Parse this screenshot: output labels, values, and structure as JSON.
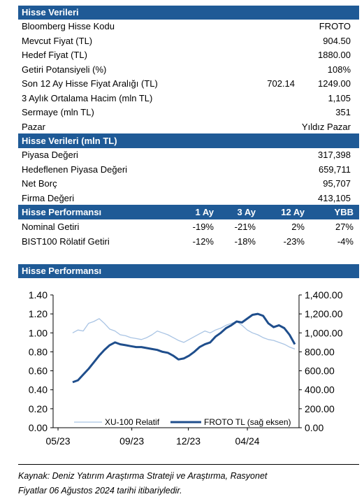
{
  "section1": {
    "title": "Hisse Verileri",
    "rows": [
      {
        "label": "Bloomberg Hisse Kodu",
        "value": "FROTO"
      },
      {
        "label": "Mevcut Fiyat (TL)",
        "value": "904.50"
      },
      {
        "label": "Hedef Fiyat (TL)",
        "value": "1880.00"
      },
      {
        "label": "Getiri Potansiyeli (%)",
        "value": "108%"
      },
      {
        "label": "Son 12 Ay Hisse Fiyat Aralığı (TL)",
        "value_low": "702.14",
        "value": "1249.00"
      },
      {
        "label": "3 Aylık Ortalama Hacim (mln TL)",
        "value": "1,105"
      },
      {
        "label": "Sermaye (mln TL)",
        "value": "351"
      },
      {
        "label": "Pazar",
        "value": "Yıldız Pazar"
      }
    ]
  },
  "section2": {
    "title": "Hisse Verileri (mln TL)",
    "rows": [
      {
        "label": "Piyasa Değeri",
        "value": "317,398"
      },
      {
        "label": "Hedeflenen Piyasa Değeri",
        "value": "659,711"
      },
      {
        "label": "Net Borç",
        "value": "95,707"
      },
      {
        "label": "Firma Değeri",
        "value": "413,105"
      }
    ]
  },
  "section3": {
    "title": "Hisse Performansı",
    "columns": [
      "1 Ay",
      "3 Ay",
      "12 Ay",
      "YBB"
    ],
    "rows": [
      {
        "label": "Nominal Getiri",
        "values": [
          "-19%",
          "-21%",
          "2%",
          "27%"
        ]
      },
      {
        "label": "BIST100 Rölatif Getiri",
        "values": [
          "-12%",
          "-18%",
          "-23%",
          "-4%"
        ]
      }
    ]
  },
  "section4": {
    "title": "Hisse Performansı"
  },
  "chart_data": {
    "type": "line",
    "x_tick_labels": [
      "05/23",
      "09/23",
      "12/23",
      "04/24"
    ],
    "left_axis": {
      "ticks": [
        "0.00",
        "0.20",
        "0.40",
        "0.60",
        "0.80",
        "1.00",
        "1.20",
        "1.40"
      ],
      "ylim": [
        0,
        1.4
      ]
    },
    "right_axis": {
      "ticks": [
        "0.00",
        "200.00",
        "400.00",
        "600.00",
        "800.00",
        "1,000.00",
        "1,200.00",
        "1,400.00"
      ],
      "ylim": [
        0,
        1400
      ]
    },
    "legend_placement": "bottom",
    "series": [
      {
        "name": "XU-100 Relatif",
        "axis": "left",
        "color": "#a9c4e4",
        "values": [
          1.0,
          1.03,
          1.02,
          1.1,
          1.12,
          1.15,
          1.1,
          1.04,
          1.02,
          0.98,
          0.97,
          0.95,
          0.94,
          0.93,
          0.95,
          0.98,
          1.02,
          1.0,
          0.98,
          0.95,
          0.92,
          0.9,
          0.93,
          0.96,
          0.99,
          1.02,
          1.0,
          1.03,
          1.05,
          1.08,
          1.1,
          1.12,
          1.08,
          1.03,
          1.0,
          0.98,
          0.95,
          0.93,
          0.92,
          0.9,
          0.88,
          0.85,
          0.83
        ]
      },
      {
        "name": "FROTO TL (sağ eksen)",
        "axis": "right",
        "color": "#1f4e8c",
        "values": [
          480,
          500,
          560,
          620,
          690,
          760,
          820,
          870,
          900,
          880,
          870,
          860,
          850,
          850,
          840,
          830,
          820,
          800,
          790,
          760,
          720,
          730,
          760,
          800,
          850,
          880,
          900,
          960,
          1000,
          1050,
          1080,
          1120,
          1110,
          1150,
          1190,
          1200,
          1180,
          1100,
          1060,
          1080,
          1050,
          980,
          880
        ]
      }
    ]
  },
  "footer": {
    "line1": "Kaynak: Deniz Yatırım Araştırma Strateji ve Araştırma, Rasyonet",
    "line2": "Fiyatlar 06 Ağustos 2024 tarihi itibariyledir."
  }
}
